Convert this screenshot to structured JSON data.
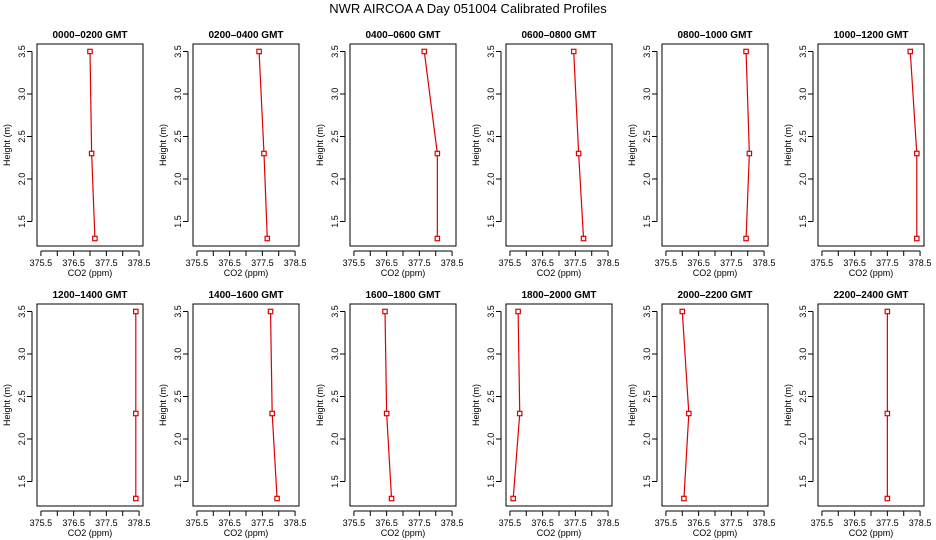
{
  "title": "NWR AIRCOA A  Day 051004  Calibrated Profiles",
  "colors": {
    "line": "#dd0000",
    "marker": "#dd0000",
    "axis": "#000000"
  },
  "chart_data": [
    {
      "type": "line",
      "title": "0000–0200 GMT",
      "xlabel": "CO2 (ppm)",
      "ylabel": "Height (m)",
      "xlim": [
        375.5,
        378.5
      ],
      "ylim": [
        1.3,
        3.5
      ],
      "xticks": [
        "375.5",
        "376.5",
        "377.5",
        "378.5"
      ],
      "xticks_minor": [
        "376.0",
        "377.0",
        "378.0"
      ],
      "yticks": [
        "1.5",
        "2.0",
        "2.5",
        "3.0",
        "3.5"
      ],
      "grid": false,
      "series": [
        {
          "x": [
            377.0,
            377.05,
            377.15
          ],
          "y": [
            3.5,
            2.3,
            1.3
          ]
        }
      ]
    },
    {
      "type": "line",
      "title": "0200–0400 GMT",
      "xlabel": "CO2 (ppm)",
      "ylabel": "Height (m)",
      "xlim": [
        375.5,
        378.5
      ],
      "ylim": [
        1.3,
        3.5
      ],
      "xticks": [
        "375.5",
        "376.5",
        "377.5",
        "378.5"
      ],
      "xticks_minor": [
        "376.0",
        "377.0",
        "378.0"
      ],
      "yticks": [
        "1.5",
        "2.0",
        "2.5",
        "3.0",
        "3.5"
      ],
      "grid": false,
      "series": [
        {
          "x": [
            377.4,
            377.55,
            377.65
          ],
          "y": [
            3.5,
            2.3,
            1.3
          ]
        }
      ]
    },
    {
      "type": "line",
      "title": "0400–0600 GMT",
      "xlabel": "CO2 (ppm)",
      "ylabel": "Height (m)",
      "xlim": [
        375.5,
        378.5
      ],
      "ylim": [
        1.3,
        3.5
      ],
      "xticks": [
        "375.5",
        "376.5",
        "377.5",
        "378.5"
      ],
      "xticks_minor": [
        "376.0",
        "377.0",
        "378.0"
      ],
      "yticks": [
        "1.5",
        "2.0",
        "2.5",
        "3.0",
        "3.5"
      ],
      "grid": false,
      "series": [
        {
          "x": [
            377.65,
            378.05,
            378.05
          ],
          "y": [
            3.5,
            2.3,
            1.3
          ]
        }
      ]
    },
    {
      "type": "line",
      "title": "0600–0800 GMT",
      "xlabel": "CO2 (ppm)",
      "ylabel": "Height (m)",
      "xlim": [
        375.5,
        378.5
      ],
      "ylim": [
        1.3,
        3.5
      ],
      "xticks": [
        "375.5",
        "376.5",
        "377.5",
        "378.5"
      ],
      "xticks_minor": [
        "376.0",
        "377.0",
        "378.0"
      ],
      "yticks": [
        "1.5",
        "2.0",
        "2.5",
        "3.0",
        "3.5"
      ],
      "grid": false,
      "series": [
        {
          "x": [
            377.45,
            377.6,
            377.75
          ],
          "y": [
            3.5,
            2.3,
            1.3
          ]
        }
      ]
    },
    {
      "type": "line",
      "title": "0800–1000 GMT",
      "xlabel": "CO2 (ppm)",
      "ylabel": "Height (m)",
      "xlim": [
        375.5,
        378.5
      ],
      "ylim": [
        1.3,
        3.5
      ],
      "xticks": [
        "375.5",
        "376.5",
        "377.5",
        "378.5"
      ],
      "xticks_minor": [
        "376.0",
        "377.0",
        "378.0"
      ],
      "yticks": [
        "1.5",
        "2.0",
        "2.5",
        "3.0",
        "3.5"
      ],
      "grid": false,
      "series": [
        {
          "x": [
            377.95,
            378.05,
            377.95
          ],
          "y": [
            3.5,
            2.3,
            1.3
          ]
        }
      ]
    },
    {
      "type": "line",
      "title": "1000–1200 GMT",
      "xlabel": "CO2 (ppm)",
      "ylabel": "Height (m)",
      "xlim": [
        375.5,
        378.5
      ],
      "ylim": [
        1.3,
        3.5
      ],
      "xticks": [
        "375.5",
        "376.5",
        "377.5",
        "378.5"
      ],
      "xticks_minor": [
        "376.0",
        "377.0",
        "378.0"
      ],
      "yticks": [
        "1.5",
        "2.0",
        "2.5",
        "3.0",
        "3.5"
      ],
      "grid": false,
      "series": [
        {
          "x": [
            378.2,
            378.4,
            378.4
          ],
          "y": [
            3.5,
            2.3,
            1.3
          ]
        }
      ]
    },
    {
      "type": "line",
      "title": "1200–1400 GMT",
      "xlabel": "CO2 (ppm)",
      "ylabel": "Height (m)",
      "xlim": [
        375.5,
        378.5
      ],
      "ylim": [
        1.3,
        3.5
      ],
      "xticks": [
        "375.5",
        "376.5",
        "377.5",
        "378.5"
      ],
      "xticks_minor": [
        "376.0",
        "377.0",
        "378.0"
      ],
      "yticks": [
        "1.5",
        "2.0",
        "2.5",
        "3.0",
        "3.5"
      ],
      "grid": false,
      "series": [
        {
          "x": [
            378.4,
            378.4,
            378.4
          ],
          "y": [
            3.5,
            2.3,
            1.3
          ]
        }
      ]
    },
    {
      "type": "line",
      "title": "1400–1600 GMT",
      "xlabel": "CO2 (ppm)",
      "ylabel": "Height (m)",
      "xlim": [
        375.5,
        378.5
      ],
      "ylim": [
        1.3,
        3.5
      ],
      "xticks": [
        "375.5",
        "376.5",
        "377.5",
        "378.5"
      ],
      "xticks_minor": [
        "376.0",
        "377.0",
        "378.0"
      ],
      "yticks": [
        "1.5",
        "2.0",
        "2.5",
        "3.0",
        "3.5"
      ],
      "grid": false,
      "series": [
        {
          "x": [
            377.75,
            377.8,
            377.95
          ],
          "y": [
            3.5,
            2.3,
            1.3
          ]
        }
      ]
    },
    {
      "type": "line",
      "title": "1600–1800 GMT",
      "xlabel": "CO2 (ppm)",
      "ylabel": "Height (m)",
      "xlim": [
        375.5,
        378.5
      ],
      "ylim": [
        1.3,
        3.5
      ],
      "xticks": [
        "375.5",
        "376.5",
        "377.5",
        "378.5"
      ],
      "xticks_minor": [
        "376.0",
        "377.0",
        "378.0"
      ],
      "yticks": [
        "1.5",
        "2.0",
        "2.5",
        "3.0",
        "3.5"
      ],
      "grid": false,
      "series": [
        {
          "x": [
            376.45,
            376.5,
            376.65
          ],
          "y": [
            3.5,
            2.3,
            1.3
          ]
        }
      ]
    },
    {
      "type": "line",
      "title": "1800–2000 GMT",
      "xlabel": "CO2 (ppm)",
      "ylabel": "Height (m)",
      "xlim": [
        375.5,
        378.5
      ],
      "ylim": [
        1.3,
        3.5
      ],
      "xticks": [
        "375.5",
        "376.5",
        "377.5",
        "378.5"
      ],
      "xticks_minor": [
        "376.0",
        "377.0",
        "378.0"
      ],
      "yticks": [
        "1.5",
        "2.0",
        "2.5",
        "3.0",
        "3.5"
      ],
      "grid": false,
      "series": [
        {
          "x": [
            375.75,
            375.8,
            375.6
          ],
          "y": [
            3.5,
            2.3,
            1.3
          ]
        }
      ]
    },
    {
      "type": "line",
      "title": "2000–2200 GMT",
      "xlabel": "CO2 (ppm)",
      "ylabel": "Height (m)",
      "xlim": [
        375.5,
        378.5
      ],
      "ylim": [
        1.3,
        3.5
      ],
      "xticks": [
        "375.5",
        "376.5",
        "377.5",
        "378.5"
      ],
      "xticks_minor": [
        "376.0",
        "377.0",
        "378.0"
      ],
      "yticks": [
        "1.5",
        "2.0",
        "2.5",
        "3.0",
        "3.5"
      ],
      "grid": false,
      "series": [
        {
          "x": [
            376.0,
            376.2,
            376.05
          ],
          "y": [
            3.5,
            2.3,
            1.3
          ]
        }
      ]
    },
    {
      "type": "line",
      "title": "2200–2400 GMT",
      "xlabel": "CO2 (ppm)",
      "ylabel": "Height (m)",
      "xlim": [
        375.5,
        378.5
      ],
      "ylim": [
        1.3,
        3.5
      ],
      "xticks": [
        "375.5",
        "376.5",
        "377.5",
        "378.5"
      ],
      "xticks_minor": [
        "376.0",
        "377.0",
        "378.0"
      ],
      "yticks": [
        "1.5",
        "2.0",
        "2.5",
        "3.0",
        "3.5"
      ],
      "grid": false,
      "series": [
        {
          "x": [
            377.5,
            377.5,
            377.5
          ],
          "y": [
            3.5,
            2.3,
            1.3
          ]
        }
      ]
    }
  ]
}
